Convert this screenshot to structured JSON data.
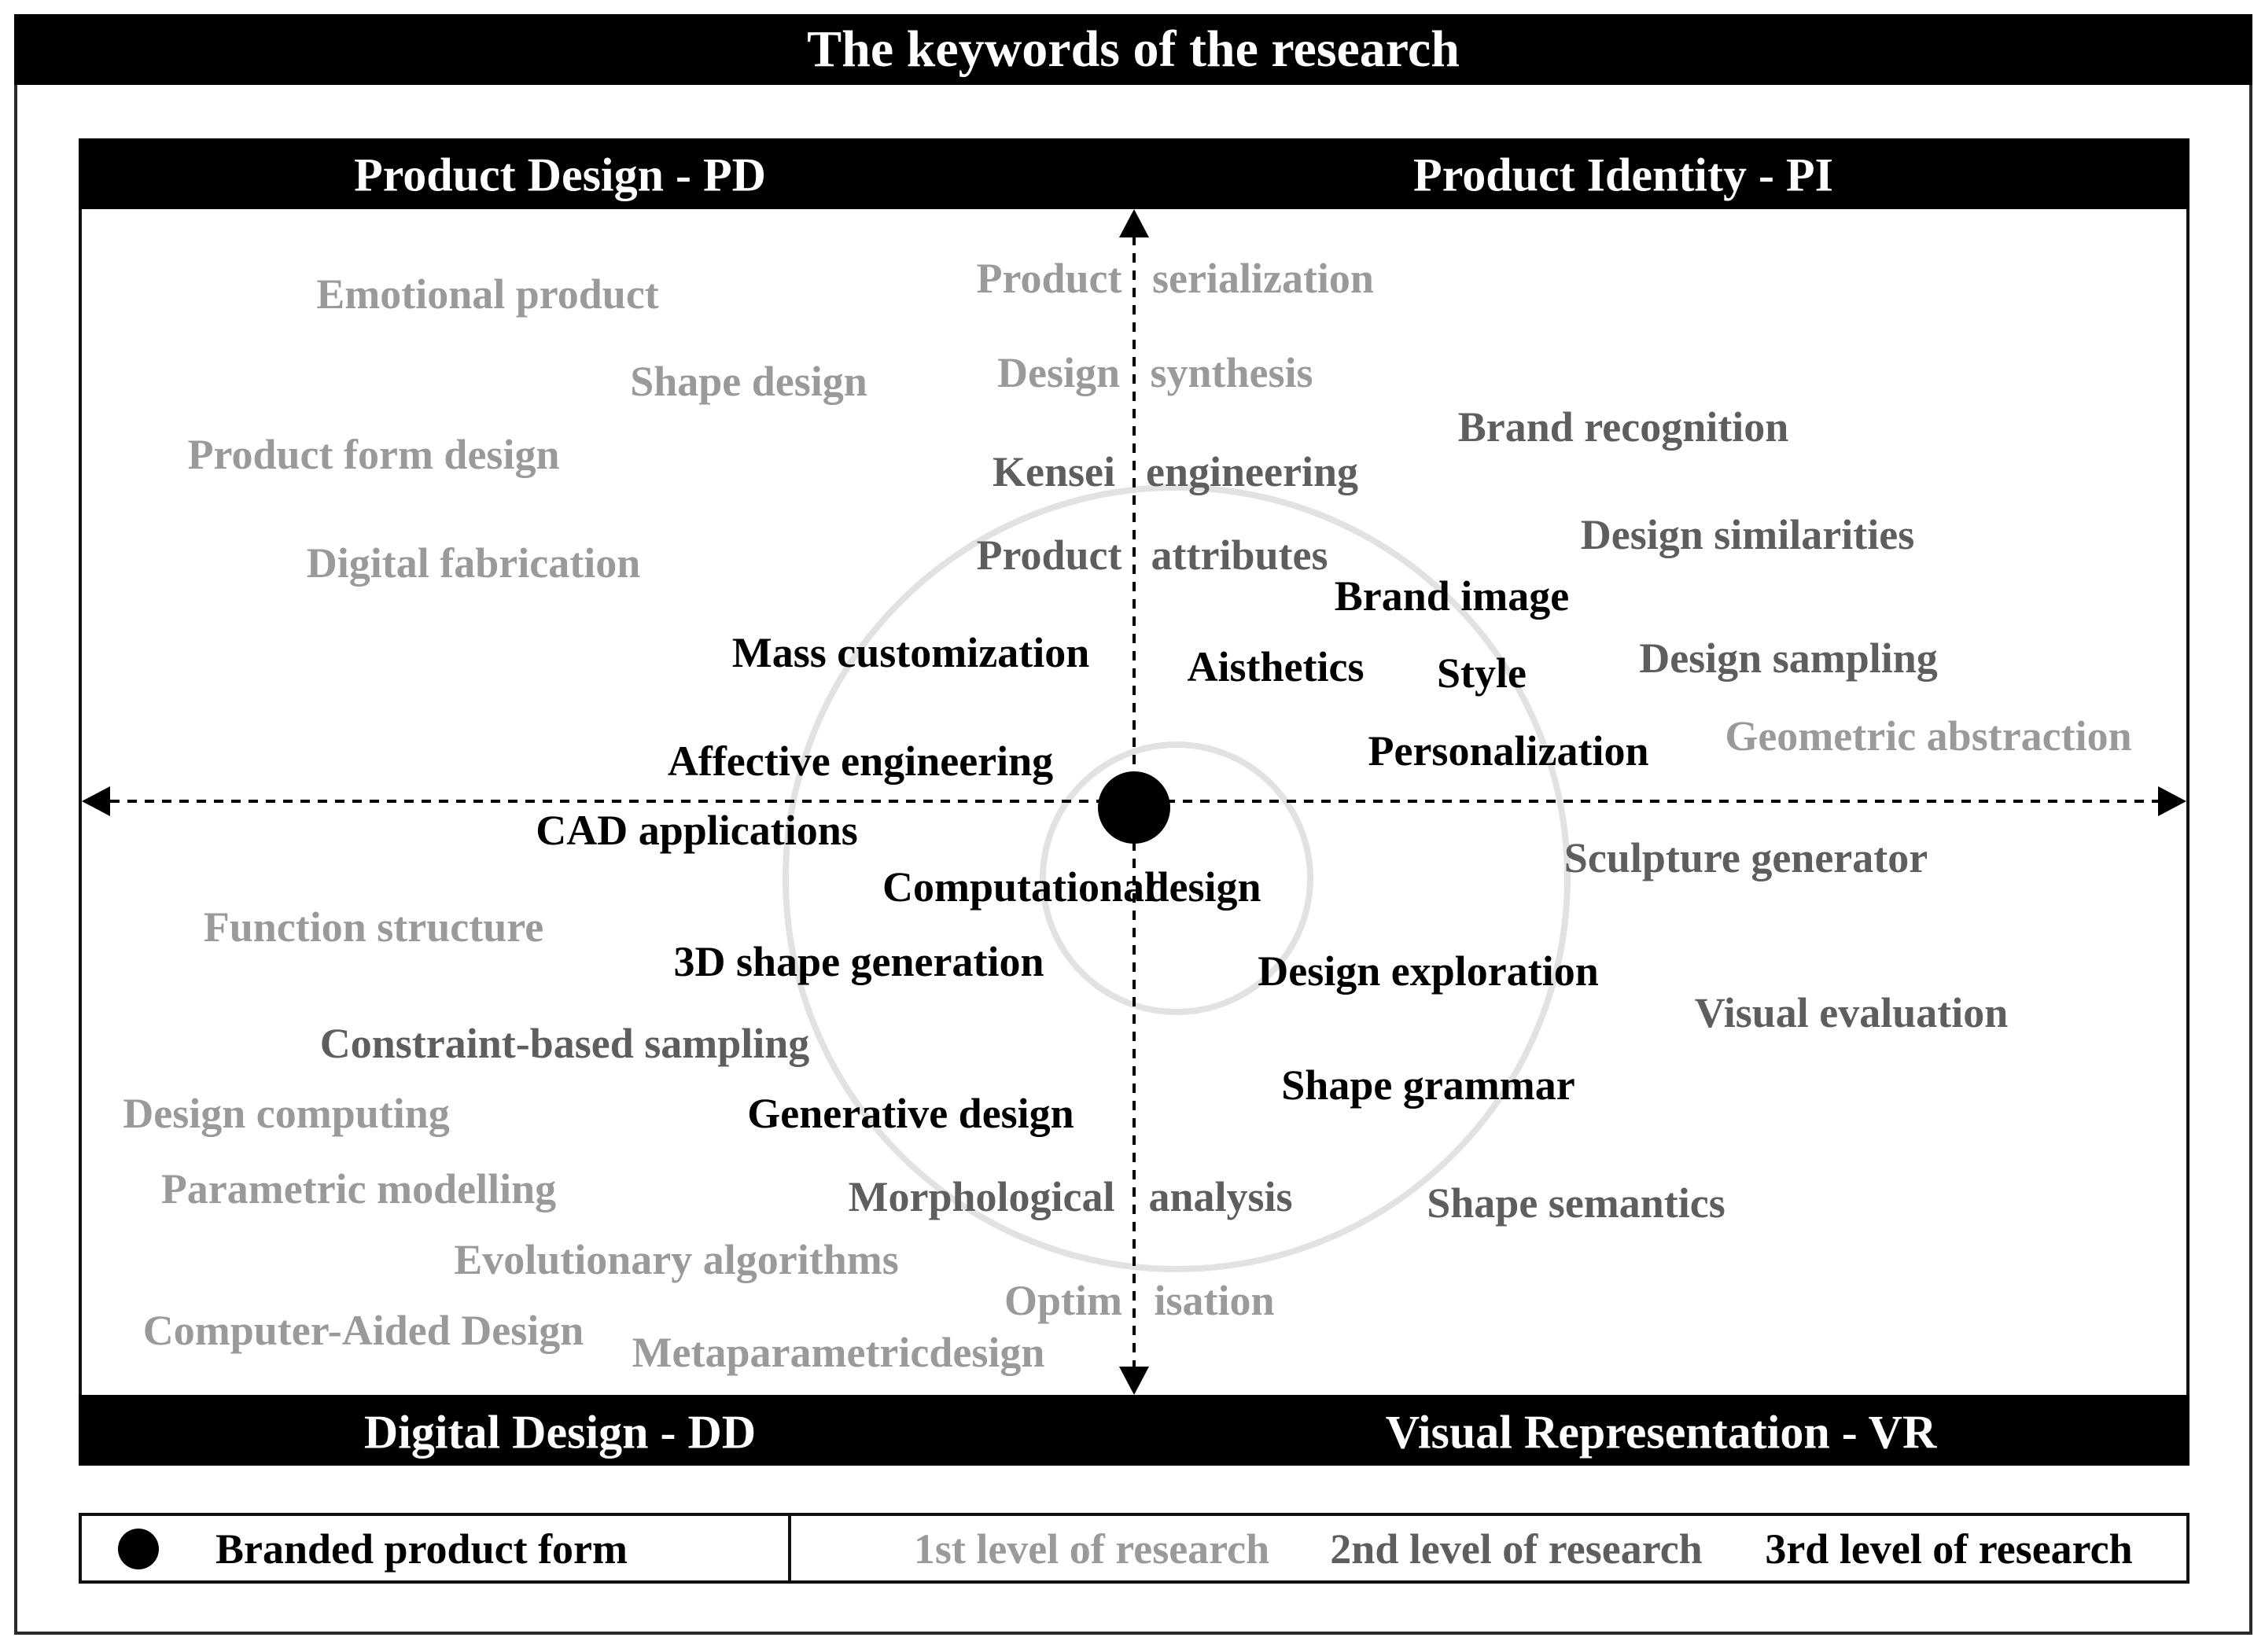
{
  "title": "The keywords of the research",
  "quadrants": {
    "top_left": "Product Design - PD",
    "top_right": "Product Identity - PI",
    "bottom_left": "Digital Design - DD",
    "bottom_right": "Visual Representation - VR"
  },
  "keywords": [
    {
      "text": "Emotional product",
      "level": 1
    },
    {
      "text": "Shape design",
      "level": 1
    },
    {
      "text": "Product form design",
      "level": 1
    },
    {
      "text": "Digital fabrication",
      "level": 1
    },
    {
      "text": "Product",
      "level": 1
    },
    {
      "text": "serialization",
      "level": 1
    },
    {
      "text": "Design",
      "level": 1
    },
    {
      "text": "synthesis",
      "level": 1
    },
    {
      "text": "Kensei",
      "level": 2
    },
    {
      "text": "engineering",
      "level": 2
    },
    {
      "text": "Product",
      "level": 2
    },
    {
      "text": "attributes",
      "level": 2
    },
    {
      "text": "Brand recognition",
      "level": 2
    },
    {
      "text": "Design similarities",
      "level": 2
    },
    {
      "text": "Brand image",
      "level": 3
    },
    {
      "text": "Mass customization",
      "level": 3
    },
    {
      "text": "Aisthetics",
      "level": 3
    },
    {
      "text": "Style",
      "level": 3
    },
    {
      "text": "Design sampling",
      "level": 2
    },
    {
      "text": "Geometric abstraction",
      "level": 1
    },
    {
      "text": "Affective engineering",
      "level": 3
    },
    {
      "text": "Personalization",
      "level": 3
    },
    {
      "text": "CAD applications",
      "level": 3
    },
    {
      "text": "Computational",
      "level": 3
    },
    {
      "text": "design",
      "level": 3
    },
    {
      "text": "Sculpture generator",
      "level": 2
    },
    {
      "text": "Function structure",
      "level": 1
    },
    {
      "text": "3D shape generation",
      "level": 3
    },
    {
      "text": "Design exploration",
      "level": 3
    },
    {
      "text": "Visual evaluation",
      "level": 2
    },
    {
      "text": "Constraint-based sampling",
      "level": 2
    },
    {
      "text": "Shape grammar",
      "level": 3
    },
    {
      "text": "Design computing",
      "level": 1
    },
    {
      "text": "Generative design",
      "level": 3
    },
    {
      "text": "Parametric modelling",
      "level": 1
    },
    {
      "text": "Morphological",
      "level": 2
    },
    {
      "text": "analysis",
      "level": 2
    },
    {
      "text": "Shape semantics",
      "level": 2
    },
    {
      "text": "Evolutionary algorithms",
      "level": 1
    },
    {
      "text": "Optim",
      "level": 1
    },
    {
      "text": "isation",
      "level": 1
    },
    {
      "text": "Computer-Aided Design",
      "level": 1
    },
    {
      "text": "Metaparametricdesign",
      "level": 1
    }
  ],
  "legend": {
    "center_label": "Branded product form",
    "level1": "1st level of research",
    "level2": "2nd level of research",
    "level3": "3rd level of research"
  },
  "colors": {
    "level1": "#9a9a9a",
    "level2": "#5e5e5e",
    "level3": "#000000",
    "bars": "#000000"
  }
}
